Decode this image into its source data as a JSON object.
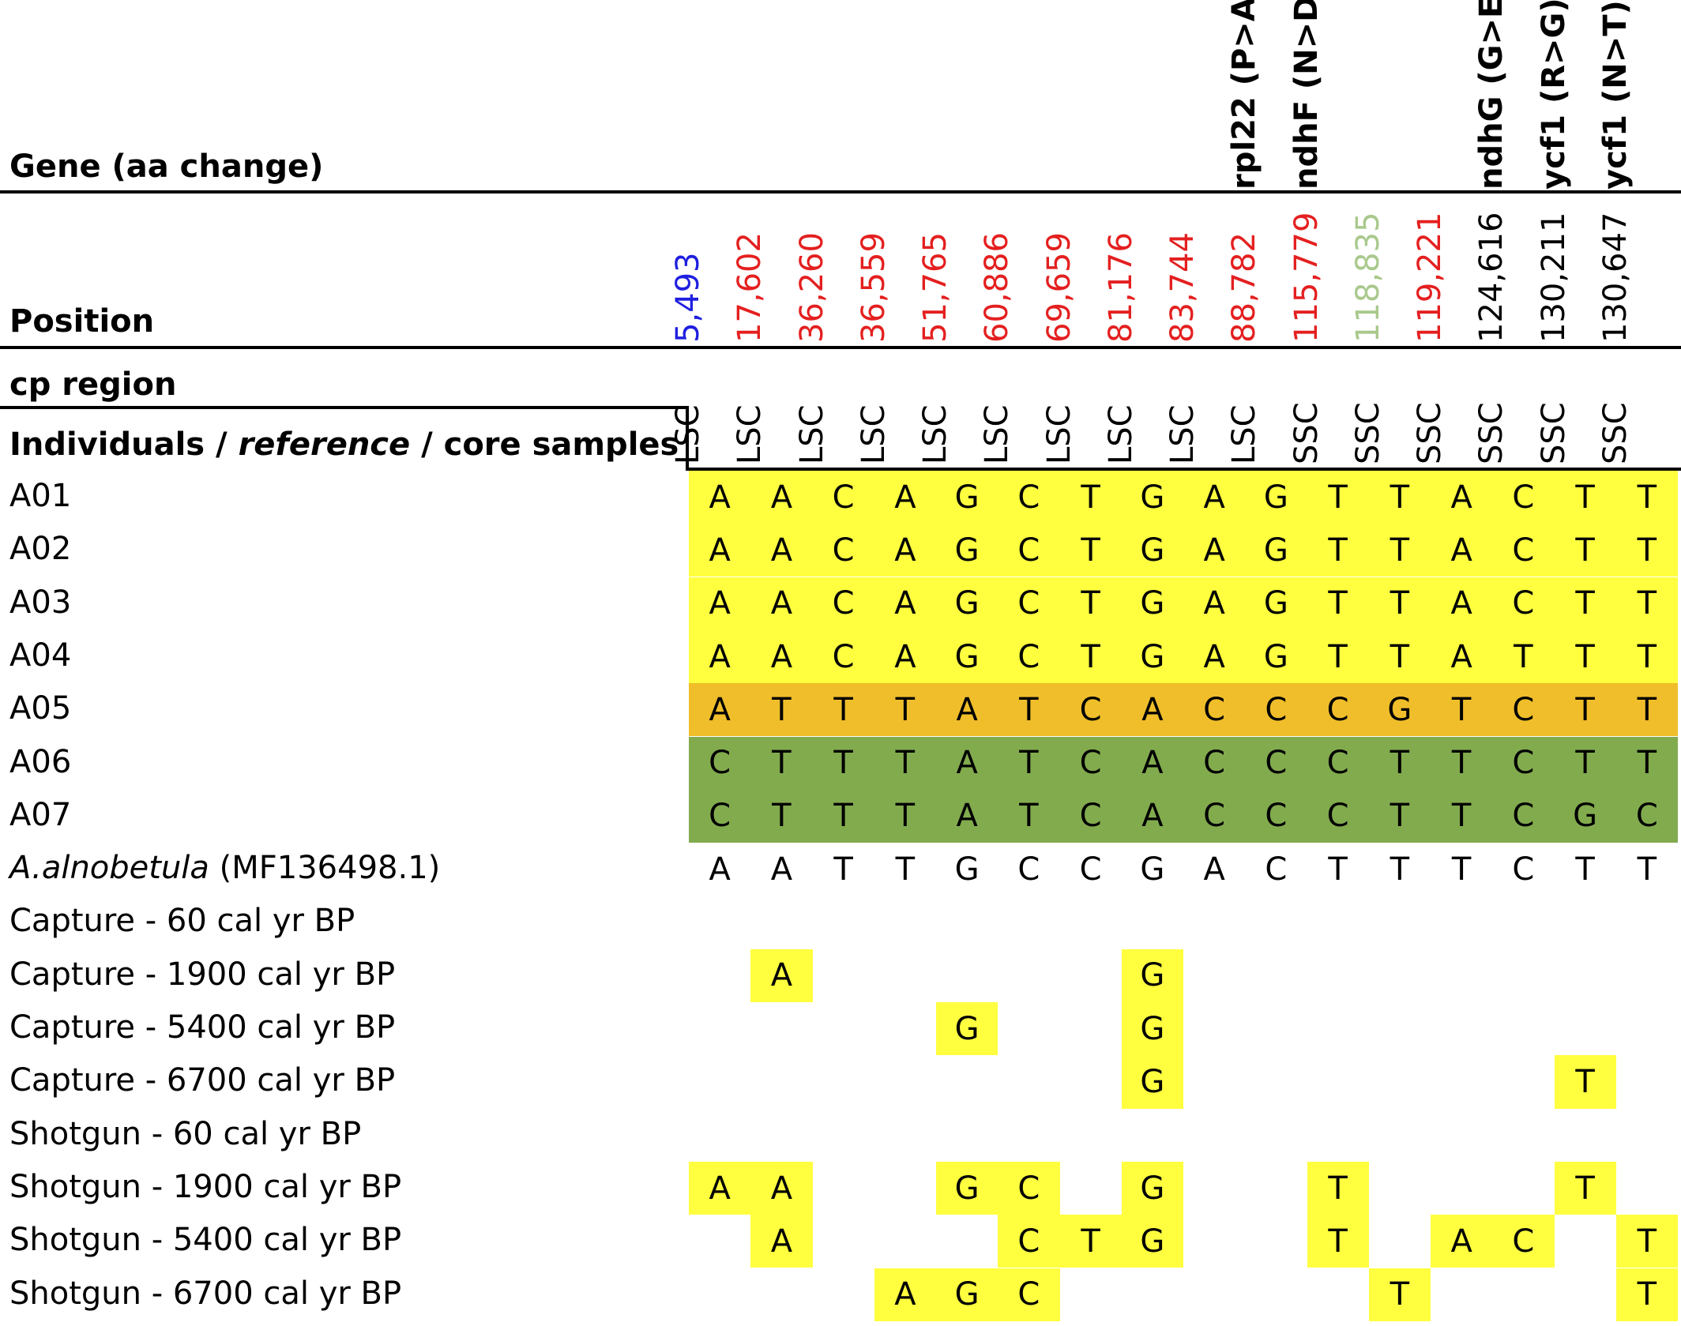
{
  "headers": {
    "gene": "Gene (aa change)",
    "position": "Position",
    "cp_region": "cp region",
    "individuals": {
      "part1": "Individuals / ",
      "part2": "reference",
      "part3": "  / core samples"
    }
  },
  "colors": {
    "yellow": "#ffff40",
    "orange": "#efbe2a",
    "green": "#82ab4e",
    "blue": "#1f1fe0",
    "red": "#e41f1f",
    "light_green": "#a9c98c",
    "black": "#000000"
  },
  "columns": [
    {
      "gene": "",
      "position": "5,493",
      "position_color": "blue",
      "region": "LSC"
    },
    {
      "gene": "",
      "position": "17,602",
      "position_color": "red",
      "region": "LSC"
    },
    {
      "gene": "",
      "position": "36,260",
      "position_color": "red",
      "region": "LSC"
    },
    {
      "gene": "",
      "position": "36,559",
      "position_color": "red",
      "region": "LSC"
    },
    {
      "gene": "",
      "position": "51,765",
      "position_color": "red",
      "region": "LSC"
    },
    {
      "gene": "",
      "position": "60,886",
      "position_color": "red",
      "region": "LSC"
    },
    {
      "gene": "",
      "position": "69,659",
      "position_color": "red",
      "region": "LSC"
    },
    {
      "gene": "",
      "position": "81,176",
      "position_color": "red",
      "region": "LSC"
    },
    {
      "gene": "",
      "position": "83,744",
      "position_color": "red",
      "region": "LSC"
    },
    {
      "gene": "rpl22 (P>A)",
      "position": "88,782",
      "position_color": "red",
      "region": "LSC"
    },
    {
      "gene": "ndhF (N>D)",
      "position": "115,779",
      "position_color": "red",
      "region": "SSC"
    },
    {
      "gene": "",
      "position": "118,835",
      "position_color": "light_green",
      "region": "SSC"
    },
    {
      "gene": "",
      "position": "119,221",
      "position_color": "red",
      "region": "SSC"
    },
    {
      "gene": "ndhG (G>E)",
      "position": "124,616",
      "position_color": "black",
      "region": "SSC"
    },
    {
      "gene": "ycf1 (R>G)",
      "position": "130,211",
      "position_color": "black",
      "region": "SSC"
    },
    {
      "gene": "ycf1 (N>T)",
      "position": "130,647",
      "position_color": "black",
      "region": "SSC"
    }
  ],
  "rows": [
    {
      "label": "A01",
      "fill": "yellow",
      "values": [
        "A",
        "A",
        "C",
        "A",
        "G",
        "C",
        "T",
        "G",
        "A",
        "G",
        "T",
        "T",
        "A",
        "C",
        "T",
        "T"
      ]
    },
    {
      "label": "A02",
      "fill": "yellow",
      "values": [
        "A",
        "A",
        "C",
        "A",
        "G",
        "C",
        "T",
        "G",
        "A",
        "G",
        "T",
        "T",
        "A",
        "C",
        "T",
        "T"
      ]
    },
    {
      "label": "A03",
      "fill": "yellow",
      "values": [
        "A",
        "A",
        "C",
        "A",
        "G",
        "C",
        "T",
        "G",
        "A",
        "G",
        "T",
        "T",
        "A",
        "C",
        "T",
        "T"
      ]
    },
    {
      "label": "A04",
      "fill": "yellow",
      "values": [
        "A",
        "A",
        "C",
        "A",
        "G",
        "C",
        "T",
        "G",
        "A",
        "G",
        "T",
        "T",
        "A",
        "T",
        "T",
        "T"
      ]
    },
    {
      "label": "A05",
      "fill": "orange",
      "values": [
        "A",
        "T",
        "T",
        "T",
        "A",
        "T",
        "C",
        "A",
        "C",
        "C",
        "C",
        "G",
        "T",
        "C",
        "T",
        "T"
      ]
    },
    {
      "label": "A06",
      "fill": "green",
      "values": [
        "C",
        "T",
        "T",
        "T",
        "A",
        "T",
        "C",
        "A",
        "C",
        "C",
        "C",
        "T",
        "T",
        "C",
        "T",
        "T"
      ]
    },
    {
      "label": "A07",
      "fill": "green",
      "values": [
        "C",
        "T",
        "T",
        "T",
        "A",
        "T",
        "C",
        "A",
        "C",
        "C",
        "C",
        "T",
        "T",
        "C",
        "G",
        "C"
      ]
    },
    {
      "label_italic": "A.alnobetula",
      "label_rest": "  (MF136498.1)",
      "fill": "",
      "values": [
        "A",
        "A",
        "T",
        "T",
        "G",
        "C",
        "C",
        "G",
        "A",
        "C",
        "T",
        "T",
        "T",
        "C",
        "T",
        "T"
      ]
    },
    {
      "label": "Capture - 60 cal yr BP",
      "fill": "cells",
      "values": [
        "",
        "",
        "",
        "",
        "",
        "",
        "",
        "",
        "",
        "",
        "",
        "",
        "",
        "",
        "",
        ""
      ]
    },
    {
      "label": "Capture - 1900 cal yr BP",
      "fill": "cells",
      "values": [
        "",
        "A",
        "",
        "",
        "",
        "",
        "",
        "G",
        "",
        "",
        "",
        "",
        "",
        "",
        "",
        ""
      ]
    },
    {
      "label": "Capture - 5400 cal yr BP",
      "fill": "cells",
      "values": [
        "",
        "",
        "",
        "",
        "G",
        "",
        "",
        "G",
        "",
        "",
        "",
        "",
        "",
        "",
        "",
        ""
      ]
    },
    {
      "label": "Capture - 6700 cal yr BP",
      "fill": "cells",
      "values": [
        "",
        "",
        "",
        "",
        "",
        "",
        "",
        "G",
        "",
        "",
        "",
        "",
        "",
        "",
        "T",
        ""
      ]
    },
    {
      "label": "Shotgun - 60 cal yr BP",
      "fill": "cells",
      "values": [
        "",
        "",
        "",
        "",
        "",
        "",
        "",
        "",
        "",
        "",
        "",
        "",
        "",
        "",
        "",
        ""
      ]
    },
    {
      "label": "Shotgun - 1900 cal yr BP",
      "fill": "cells",
      "values": [
        "A",
        "A",
        "",
        "",
        "G",
        "C",
        "",
        "G",
        "",
        "",
        "T",
        "",
        "",
        "",
        "T",
        ""
      ]
    },
    {
      "label": "Shotgun - 5400 cal yr BP",
      "fill": "cells",
      "values": [
        "",
        "A",
        "",
        "",
        "",
        "C",
        "T",
        "G",
        "",
        "",
        "T",
        "",
        "A",
        "C",
        "",
        "T"
      ]
    },
    {
      "label": "Shotgun - 6700 cal yr BP",
      "fill": "cells",
      "values": [
        "",
        "",
        "",
        "A",
        "G",
        "C",
        "",
        "",
        "",
        "",
        "",
        "T",
        "",
        "",
        "",
        "T"
      ]
    }
  ]
}
